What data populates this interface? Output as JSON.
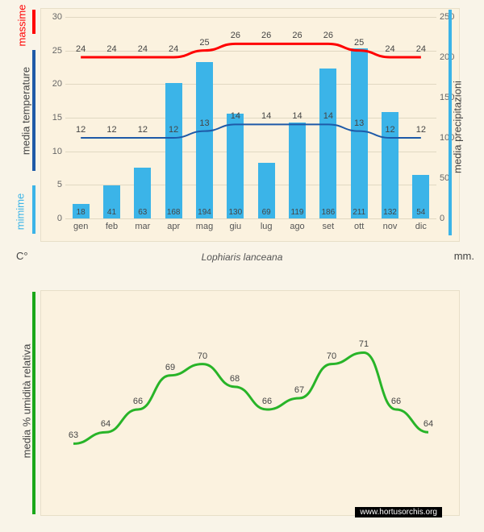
{
  "caption": "Lophiaris lanceana",
  "credit": "www.hortusorchis.org",
  "unit_left_label": "C°",
  "unit_right_label": "mm.",
  "months": [
    "gen",
    "feb",
    "mar",
    "apr",
    "mag",
    "giu",
    "lug",
    "ago",
    "set",
    "ott",
    "nov",
    "dic"
  ],
  "top_chart": {
    "type": "bar+2lines",
    "background_color": "#fbf2df",
    "grid_color": "#e0d8c2",
    "left_axis": {
      "label": "media  temperature",
      "min": 0,
      "max": 30,
      "step": 5,
      "color": "#444"
    },
    "right_axis": {
      "label": "media  precipitazioni",
      "min": 0,
      "max": 250,
      "step": 50,
      "color": "#444"
    },
    "bars": {
      "label": "precipitazioni",
      "color": "#3bb4e8",
      "width_frac": 0.55,
      "values": [
        18,
        41,
        63,
        168,
        194,
        130,
        69,
        119,
        186,
        211,
        132,
        54
      ]
    },
    "line_max": {
      "label": "massime",
      "color": "#ff0000",
      "width": 3,
      "values": [
        24,
        24,
        24,
        24,
        25,
        26,
        26,
        26,
        26,
        25,
        24,
        24
      ]
    },
    "line_min": {
      "label": "minime",
      "color": "#1e5aa8",
      "width": 2,
      "values": [
        12,
        12,
        12,
        12,
        13,
        14,
        14,
        14,
        14,
        13,
        12,
        12
      ]
    },
    "side_labels": {
      "massime": {
        "text": "massime",
        "color": "#ff0000"
      },
      "minime": {
        "text": "mimime",
        "color": "#3bb4e8"
      }
    },
    "side_bars": {
      "massime_color": "#ff0000",
      "temperature_color": "#1e5aa8",
      "minime_color": "#3bb4e8",
      "precip_color": "#3bb4e8"
    }
  },
  "bottom_chart": {
    "type": "line",
    "background_color": "#fbf2df",
    "left_axis_label": "media % umidità relativa",
    "side_bar_color": "#1aa71a",
    "line": {
      "color": "#28b428",
      "width": 3,
      "values": [
        63,
        64,
        66,
        69,
        70,
        68,
        66,
        67,
        70,
        71,
        66,
        64
      ],
      "ymin": 58,
      "ymax": 75
    }
  }
}
